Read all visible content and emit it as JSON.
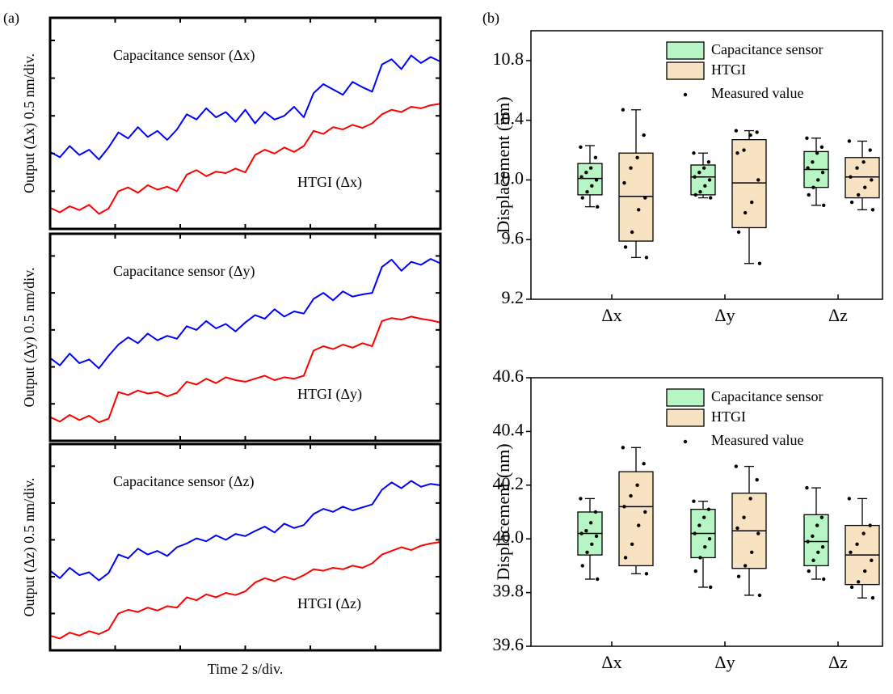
{
  "chart_data": [
    {
      "type": "line",
      "panel_label": "(a)",
      "ylabel": "Output (Δx) 0.5 nm/div.",
      "x": [
        0,
        0.3,
        0.6,
        0.9,
        1.2,
        1.5,
        1.8,
        2.1,
        2.4,
        2.7,
        3,
        3.3,
        3.6,
        3.9,
        4.2,
        4.5,
        4.8,
        5.1,
        5.4,
        5.7,
        6,
        6.3,
        6.6,
        6.9,
        7.2,
        7.5,
        7.8,
        8.1,
        8.4,
        8.7,
        9,
        9.3,
        9.6,
        9.9,
        10.2,
        10.5,
        10.8,
        11.1,
        11.4,
        11.7,
        12
      ],
      "xlim": [
        0,
        12
      ],
      "xticks": [
        0,
        2,
        4,
        6,
        8,
        10,
        12
      ],
      "ylim": [
        0,
        2.8
      ],
      "yticks": [
        0,
        0.5,
        1,
        1.5,
        2,
        2.5
      ],
      "series": [
        {
          "name": "Capacitance sensor (Δx)",
          "color": "#0000ff",
          "values": [
            1.02,
            0.95,
            1.1,
            0.98,
            1.05,
            0.92,
            1.08,
            1.28,
            1.2,
            1.35,
            1.22,
            1.3,
            1.18,
            1.32,
            1.52,
            1.45,
            1.6,
            1.48,
            1.55,
            1.42,
            1.58,
            1.4,
            1.55,
            1.45,
            1.5,
            1.62,
            1.48,
            1.8,
            1.92,
            1.85,
            1.78,
            1.95,
            1.88,
            1.82,
            2.18,
            2.25,
            2.12,
            2.3,
            2.2,
            2.28,
            2.22
          ]
        },
        {
          "name": "HTGI (Δx)",
          "color": "#ff0000",
          "values": [
            0.28,
            0.22,
            0.3,
            0.25,
            0.32,
            0.2,
            0.27,
            0.5,
            0.55,
            0.48,
            0.58,
            0.52,
            0.56,
            0.5,
            0.72,
            0.78,
            0.7,
            0.76,
            0.74,
            0.8,
            0.75,
            0.98,
            1.05,
            1,
            1.08,
            1.02,
            1.1,
            1.3,
            1.26,
            1.35,
            1.32,
            1.38,
            1.34,
            1.4,
            1.52,
            1.58,
            1.55,
            1.62,
            1.6,
            1.64,
            1.66
          ]
        }
      ]
    },
    {
      "type": "line",
      "ylabel": "Output (Δy) 0.5 nm/div.",
      "x": [
        0,
        0.3,
        0.6,
        0.9,
        1.2,
        1.5,
        1.8,
        2.1,
        2.4,
        2.7,
        3,
        3.3,
        3.6,
        3.9,
        4.2,
        4.5,
        4.8,
        5.1,
        5.4,
        5.7,
        6,
        6.3,
        6.6,
        6.9,
        7.2,
        7.5,
        7.8,
        8.1,
        8.4,
        8.7,
        9,
        9.3,
        9.6,
        9.9,
        10.2,
        10.5,
        10.8,
        11.1,
        11.4,
        11.7,
        12
      ],
      "xlim": [
        0,
        12
      ],
      "xticks": [
        0,
        2,
        4,
        6,
        8,
        10,
        12
      ],
      "ylim": [
        0,
        2.8
      ],
      "yticks": [
        0,
        0.5,
        1,
        1.5,
        2,
        2.5
      ],
      "series": [
        {
          "name": "Capacitance sensor (Δy)",
          "color": "#0000ff",
          "values": [
            1.12,
            1.02,
            1.18,
            1.05,
            1.1,
            0.98,
            1.15,
            1.3,
            1.4,
            1.32,
            1.45,
            1.36,
            1.42,
            1.38,
            1.55,
            1.5,
            1.62,
            1.52,
            1.58,
            1.48,
            1.6,
            1.7,
            1.65,
            1.78,
            1.68,
            1.75,
            1.72,
            1.92,
            2,
            1.9,
            2.02,
            1.95,
            1.98,
            2,
            2.35,
            2.45,
            2.3,
            2.42,
            2.38,
            2.46,
            2.4
          ]
        },
        {
          "name": "HTGI (Δy)",
          "color": "#ff0000",
          "values": [
            0.32,
            0.26,
            0.35,
            0.28,
            0.34,
            0.25,
            0.3,
            0.66,
            0.62,
            0.68,
            0.64,
            0.66,
            0.6,
            0.65,
            0.8,
            0.76,
            0.84,
            0.78,
            0.86,
            0.82,
            0.8,
            0.84,
            0.88,
            0.82,
            0.86,
            0.84,
            0.88,
            1.22,
            1.28,
            1.24,
            1.3,
            1.26,
            1.32,
            1.28,
            1.62,
            1.66,
            1.64,
            1.68,
            1.65,
            1.63,
            1.6
          ]
        }
      ]
    },
    {
      "type": "line",
      "ylabel": "Output (Δz) 0.5 nm/div.",
      "xlabel": "Time 2 s/div.",
      "x": [
        0,
        0.3,
        0.6,
        0.9,
        1.2,
        1.5,
        1.8,
        2.1,
        2.4,
        2.7,
        3,
        3.3,
        3.6,
        3.9,
        4.2,
        4.5,
        4.8,
        5.1,
        5.4,
        5.7,
        6,
        6.3,
        6.6,
        6.9,
        7.2,
        7.5,
        7.8,
        8.1,
        8.4,
        8.7,
        9,
        9.3,
        9.6,
        9.9,
        10.2,
        10.5,
        10.8,
        11.1,
        11.4,
        11.7,
        12
      ],
      "xlim": [
        0,
        12
      ],
      "xticks": [
        0,
        2,
        4,
        6,
        8,
        10,
        12
      ],
      "ylim": [
        0,
        2.8
      ],
      "yticks": [
        0,
        0.5,
        1,
        1.5,
        2,
        2.5
      ],
      "series": [
        {
          "name": "Capacitance sensor (Δz)",
          "color": "#0000ff",
          "values": [
            1.08,
            0.98,
            1.12,
            1.02,
            1.06,
            0.95,
            1.05,
            1.3,
            1.25,
            1.38,
            1.3,
            1.35,
            1.28,
            1.4,
            1.45,
            1.52,
            1.48,
            1.56,
            1.5,
            1.58,
            1.55,
            1.62,
            1.68,
            1.6,
            1.72,
            1.66,
            1.7,
            1.85,
            1.92,
            1.88,
            1.95,
            1.9,
            1.94,
            1.98,
            2.18,
            2.28,
            2.2,
            2.3,
            2.22,
            2.26,
            2.24
          ]
        },
        {
          "name": "HTGI (Δz)",
          "color": "#ff0000",
          "values": [
            0.2,
            0.16,
            0.24,
            0.2,
            0.26,
            0.22,
            0.28,
            0.5,
            0.55,
            0.52,
            0.58,
            0.54,
            0.6,
            0.58,
            0.72,
            0.68,
            0.76,
            0.72,
            0.78,
            0.75,
            0.8,
            0.92,
            0.98,
            0.94,
            1,
            0.96,
            1.02,
            1.1,
            1.08,
            1.12,
            1.1,
            1.15,
            1.12,
            1.18,
            1.3,
            1.35,
            1.4,
            1.36,
            1.42,
            1.45,
            1.47
          ]
        }
      ]
    },
    {
      "type": "box",
      "panel_label": "(b)",
      "ylabel": "Displacement (nm)",
      "categories": [
        "Δx",
        "Δy",
        "Δz"
      ],
      "ylim": [
        9.2,
        11.0
      ],
      "yticks": [
        9.2,
        9.6,
        {
          "value": 10,
          "label": "10.0"
        },
        10.4,
        10.8
      ],
      "points_label": "Measured value",
      "legend": "upper center",
      "series": [
        {
          "name": "Capacitance sensor",
          "color": "#b8f5c4",
          "boxes": [
            {
              "whislo": 9.82,
              "q1": 9.9,
              "med": 10.01,
              "q3": 10.11,
              "whishi": 10.23,
              "points": [
                10.22,
                10.15,
                10.08,
                10.05,
                10.02,
                10,
                9.96,
                9.92,
                9.88,
                9.82
              ]
            },
            {
              "whislo": 9.88,
              "q1": 9.9,
              "med": 10.02,
              "q3": 10.1,
              "whishi": 10.18,
              "points": [
                10.18,
                10.12,
                10.08,
                10.05,
                10.02,
                10,
                9.96,
                9.92,
                9.9,
                9.88
              ]
            },
            {
              "whislo": 9.83,
              "q1": 9.95,
              "med": 10.07,
              "q3": 10.19,
              "whishi": 10.28,
              "points": [
                10.28,
                10.22,
                10.18,
                10.12,
                10.08,
                10.05,
                10,
                9.95,
                9.9,
                9.83
              ]
            }
          ]
        },
        {
          "name": "HTGI",
          "color": "#f7e2c2",
          "boxes": [
            {
              "whislo": 9.48,
              "q1": 9.59,
              "med": 9.89,
              "q3": 10.18,
              "whishi": 10.47,
              "points": [
                10.47,
                10.3,
                10.15,
                10.08,
                9.98,
                9.88,
                9.8,
                9.65,
                9.55,
                9.48
              ]
            },
            {
              "whislo": 9.44,
              "q1": 9.68,
              "med": 9.98,
              "q3": 10.27,
              "whishi": 10.33,
              "points": [
                10.33,
                10.32,
                10.3,
                10.2,
                10.18,
                10,
                9.85,
                9.78,
                9.65,
                9.44
              ]
            },
            {
              "whislo": 9.8,
              "q1": 9.88,
              "med": 10.02,
              "q3": 10.15,
              "whishi": 10.26,
              "points": [
                10.26,
                10.2,
                10.12,
                10.08,
                10.02,
                10,
                9.95,
                9.9,
                9.85,
                9.8
              ]
            }
          ]
        }
      ]
    },
    {
      "type": "box",
      "ylabel": "Displacement (nm)",
      "categories": [
        "Δx",
        "Δy",
        "Δz"
      ],
      "ylim": [
        39.6,
        40.6
      ],
      "yticks": [
        39.6,
        39.8,
        {
          "value": 40,
          "label": "40.0"
        },
        40.2,
        40.4,
        40.6
      ],
      "points_label": "Measured value",
      "legend": "upper center",
      "series": [
        {
          "name": "Capacitance sensor",
          "color": "#b8f5c4",
          "boxes": [
            {
              "whislo": 39.85,
              "q1": 39.94,
              "med": 40.02,
              "q3": 40.1,
              "whishi": 40.15,
              "points": [
                40.15,
                40.1,
                40.06,
                40.03,
                40.02,
                40.01,
                39.98,
                39.95,
                39.9,
                39.85
              ]
            },
            {
              "whislo": 39.82,
              "q1": 39.93,
              "med": 40.02,
              "q3": 40.11,
              "whishi": 40.14,
              "points": [
                40.14,
                40.11,
                40.08,
                40.05,
                40.02,
                40,
                39.97,
                39.93,
                39.88,
                39.82
              ]
            },
            {
              "whislo": 39.85,
              "q1": 39.9,
              "med": 39.99,
              "q3": 40.09,
              "whishi": 40.19,
              "points": [
                40.19,
                40.08,
                40.05,
                40.01,
                39.99,
                39.97,
                39.95,
                39.92,
                39.88,
                39.85
              ]
            }
          ]
        },
        {
          "name": "HTGI",
          "color": "#f7e2c2",
          "boxes": [
            {
              "whislo": 39.87,
              "q1": 39.9,
              "med": 40.12,
              "q3": 40.25,
              "whishi": 40.34,
              "points": [
                40.34,
                40.28,
                40.2,
                40.16,
                40.12,
                40.1,
                40.05,
                39.98,
                39.93,
                39.87
              ]
            },
            {
              "whislo": 39.79,
              "q1": 39.89,
              "med": 40.03,
              "q3": 40.17,
              "whishi": 40.27,
              "points": [
                40.27,
                40.22,
                40.15,
                40.08,
                40.04,
                40.02,
                39.95,
                39.9,
                39.86,
                39.79
              ]
            },
            {
              "whislo": 39.78,
              "q1": 39.83,
              "med": 39.94,
              "q3": 40.05,
              "whishi": 40.15,
              "points": [
                40.15,
                40.05,
                40.02,
                39.98,
                39.95,
                39.92,
                39.88,
                39.84,
                39.82,
                39.78
              ]
            }
          ]
        }
      ]
    }
  ]
}
